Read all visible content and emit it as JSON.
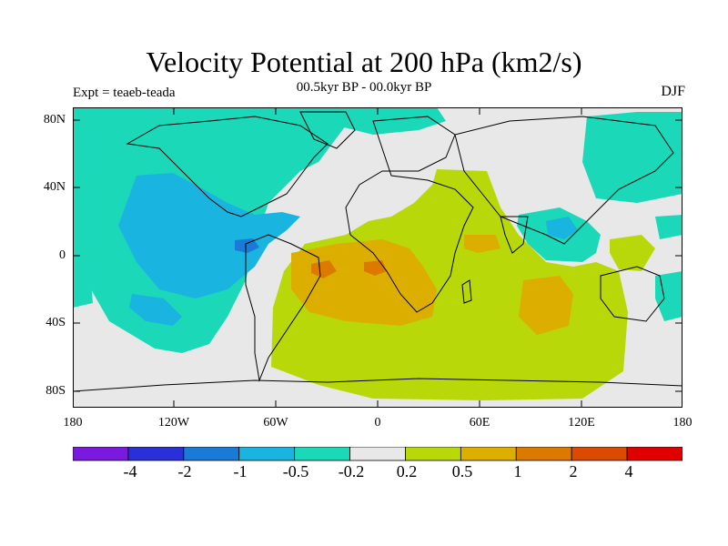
{
  "header": {
    "title": "Velocity Potential at 200 hPa (km2/s)",
    "subtitle": "00.5kyr BP - 00.0kyr BP",
    "experiment": "Expt = teaeb-teada",
    "season": "DJF"
  },
  "axes": {
    "y_ticks": [
      "80N",
      "40N",
      "0",
      "40S",
      "80S"
    ],
    "x_ticks": [
      "180",
      "120W",
      "60W",
      "0",
      "60E",
      "120E",
      "180"
    ]
  },
  "colorbar": {
    "colors": [
      "#7a1adf",
      "#2a30d8",
      "#1a7ad8",
      "#1ab4e0",
      "#1ad8b8",
      "#e8e8e8",
      "#b8d80a",
      "#dcae00",
      "#dc7a00",
      "#dc4a00",
      "#e00000"
    ],
    "labels": [
      "-4",
      "-2",
      "-1",
      "-0.5",
      "-0.2",
      "0.2",
      "0.5",
      "1",
      "2",
      "4"
    ]
  },
  "map": {
    "land_color": "#000000",
    "background_color": "#e8e8e8"
  }
}
